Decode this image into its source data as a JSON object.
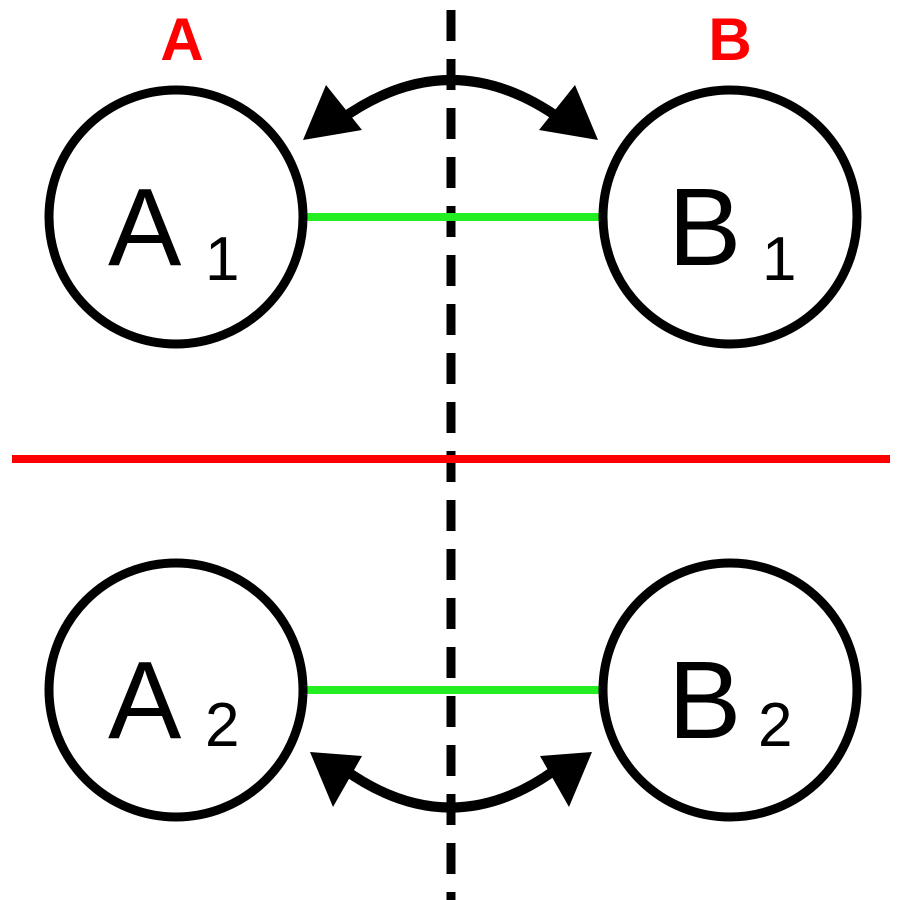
{
  "labels": {
    "left": "A",
    "right": "B"
  },
  "colors": {
    "labels": "#ff0000",
    "divider": "#ff0000",
    "link": "#22ee22",
    "stroke": "#000000"
  },
  "nodes": {
    "a1": {
      "main": "A",
      "sub": "1"
    },
    "b1": {
      "main": "B",
      "sub": "1"
    },
    "a2": {
      "main": "A",
      "sub": "2"
    },
    "b2": {
      "main": "B",
      "sub": "2"
    }
  }
}
